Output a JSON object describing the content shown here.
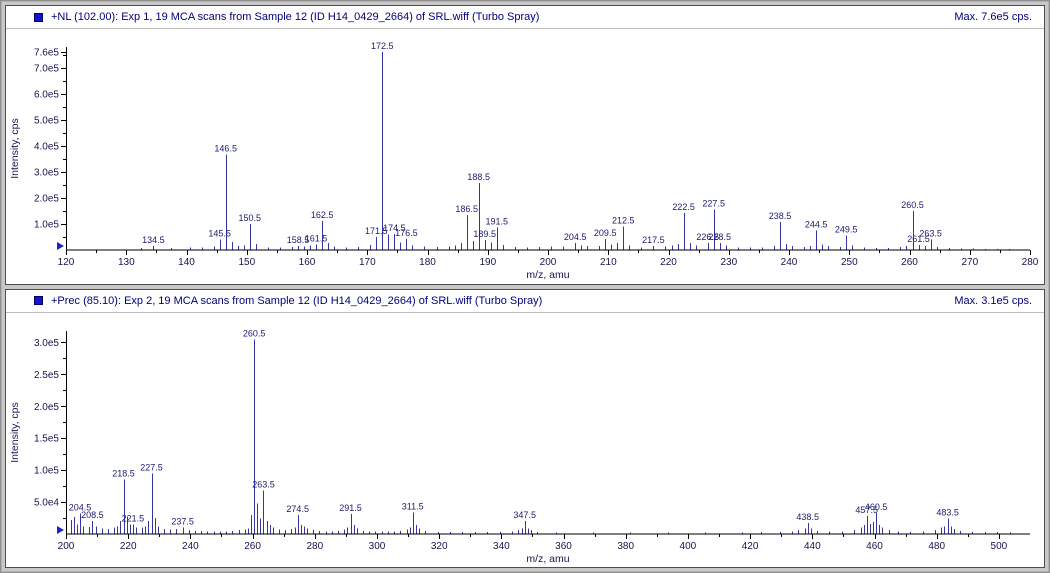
{
  "style": {
    "peak_color": "#3434a4",
    "peak_label_color": "#1b1b6e",
    "tick_label_color": "#15154d",
    "axis_color": "#000000",
    "marker_color": "#2020c8",
    "header_text_color": "#00007d"
  },
  "panels": [
    {
      "icon": "pane-select-square-icon",
      "title": "+NL (102.00): Exp 1, 19 MCA scans from Sample 12 (ID H14_0429_2664) of SRL.wiff (Turbo Spray)",
      "max_label": "Max. 7.6e5 cps."
    },
    {
      "icon": "pane-select-square-icon",
      "title": "+Prec (85.10): Exp 2, 19 MCA scans from Sample 12 (ID H14_0429_2664) of SRL.wiff (Turbo Spray)",
      "max_label": "Max. 3.1e5 cps."
    }
  ],
  "chart_data": [
    {
      "type": "bar",
      "title": "+NL (102.00): Exp 1, 19 MCA scans from Sample 12 (ID H14_0429_2664) of SRL.wiff (Turbo Spray)",
      "xlabel": "m/z, amu",
      "ylabel": "Intensity, cps",
      "xlim": [
        120,
        280
      ],
      "ylim": [
        0,
        780000
      ],
      "max_intensity": 760000,
      "grid": false,
      "x_ticks": [
        120,
        130,
        140,
        150,
        160,
        170,
        180,
        190,
        200,
        210,
        220,
        230,
        240,
        250,
        260,
        270,
        280
      ],
      "x_minor": [
        125,
        135,
        145,
        155,
        165,
        175,
        185,
        195,
        205,
        215,
        225,
        235,
        245,
        255,
        265,
        275
      ],
      "y_ticks": [
        {
          "v": 100000,
          "label": "1.0e5"
        },
        {
          "v": 200000,
          "label": "2.0e5"
        },
        {
          "v": 300000,
          "label": "3.0e5"
        },
        {
          "v": 400000,
          "label": "4.0e5"
        },
        {
          "v": 500000,
          "label": "5.0e5"
        },
        {
          "v": 600000,
          "label": "6.0e5"
        },
        {
          "v": 700000,
          "label": "7.0e5"
        },
        {
          "v": 760000,
          "label": "7.6e5"
        }
      ],
      "y_minor": [
        50000,
        150000,
        250000,
        350000,
        450000,
        550000,
        650000,
        750000
      ],
      "labeled_peaks": [
        {
          "mz": 134.5,
          "i": 15000,
          "label": "134.5"
        },
        {
          "mz": 145.5,
          "i": 40000,
          "label": "145.5"
        },
        {
          "mz": 146.5,
          "i": 367000,
          "label": "146.5"
        },
        {
          "mz": 150.5,
          "i": 100000,
          "label": "150.5"
        },
        {
          "mz": 158.5,
          "i": 15000,
          "label": "158.5"
        },
        {
          "mz": 161.5,
          "i": 22000,
          "label": "161.5"
        },
        {
          "mz": 162.5,
          "i": 112000,
          "label": "162.5"
        },
        {
          "mz": 171.5,
          "i": 50000,
          "label": "171.5"
        },
        {
          "mz": 172.5,
          "i": 760000,
          "label": "172.5"
        },
        {
          "mz": 174.5,
          "i": 62000,
          "label": "174.5"
        },
        {
          "mz": 176.5,
          "i": 42000,
          "label": "176.5"
        },
        {
          "mz": 186.5,
          "i": 135000,
          "label": "186.5"
        },
        {
          "mz": 188.5,
          "i": 258000,
          "label": "188.5"
        },
        {
          "mz": 189.5,
          "i": 38000,
          "label": "189.5"
        },
        {
          "mz": 191.5,
          "i": 86000,
          "label": "191.5"
        },
        {
          "mz": 204.5,
          "i": 26000,
          "label": "204.5"
        },
        {
          "mz": 209.5,
          "i": 42000,
          "label": "209.5"
        },
        {
          "mz": 212.5,
          "i": 90000,
          "label": "212.5"
        },
        {
          "mz": 217.5,
          "i": 16000,
          "label": "217.5"
        },
        {
          "mz": 222.5,
          "i": 142000,
          "label": "222.5"
        },
        {
          "mz": 226.5,
          "i": 27000,
          "label": "226.5"
        },
        {
          "mz": 227.5,
          "i": 156000,
          "label": "227.5"
        },
        {
          "mz": 228.5,
          "i": 27000,
          "label": "228.5"
        },
        {
          "mz": 238.5,
          "i": 108000,
          "label": "238.5"
        },
        {
          "mz": 244.5,
          "i": 74000,
          "label": "244.5"
        },
        {
          "mz": 249.5,
          "i": 55000,
          "label": "249.5"
        },
        {
          "mz": 260.5,
          "i": 150000,
          "label": "260.5"
        },
        {
          "mz": 261.5,
          "i": 20000,
          "label": "261.5"
        },
        {
          "mz": 263.5,
          "i": 40000,
          "label": "263.5"
        }
      ],
      "minor_peaks": [
        [
          132.5,
          8000
        ],
        [
          137.5,
          7000
        ],
        [
          140.5,
          9000
        ],
        [
          142.5,
          10000
        ],
        [
          144.5,
          14000
        ],
        [
          147.5,
          30000
        ],
        [
          148.5,
          16000
        ],
        [
          149.5,
          18000
        ],
        [
          151.5,
          24000
        ],
        [
          153.5,
          10000
        ],
        [
          155.5,
          9000
        ],
        [
          157.5,
          11000
        ],
        [
          159.5,
          13000
        ],
        [
          160.5,
          17000
        ],
        [
          163.5,
          26000
        ],
        [
          164.5,
          14000
        ],
        [
          166.5,
          10000
        ],
        [
          168.5,
          11000
        ],
        [
          170.5,
          20000
        ],
        [
          173.5,
          60000
        ],
        [
          175.5,
          28000
        ],
        [
          177.5,
          17000
        ],
        [
          179.5,
          13000
        ],
        [
          181.5,
          12000
        ],
        [
          183.5,
          13000
        ],
        [
          184.5,
          17000
        ],
        [
          185.5,
          26000
        ],
        [
          187.5,
          34000
        ],
        [
          190.5,
          28000
        ],
        [
          192.5,
          20000
        ],
        [
          194.5,
          11000
        ],
        [
          196.5,
          10000
        ],
        [
          198.5,
          11000
        ],
        [
          200.5,
          14000
        ],
        [
          202.5,
          13000
        ],
        [
          205.5,
          17000
        ],
        [
          206.5,
          15000
        ],
        [
          208.5,
          15000
        ],
        [
          210.5,
          21000
        ],
        [
          211.5,
          27000
        ],
        [
          213.5,
          17000
        ],
        [
          215.5,
          10000
        ],
        [
          219.5,
          13000
        ],
        [
          220.5,
          17000
        ],
        [
          221.5,
          24000
        ],
        [
          223.5,
          27000
        ],
        [
          224.5,
          17000
        ],
        [
          229.5,
          17000
        ],
        [
          231.5,
          10000
        ],
        [
          233.5,
          9000
        ],
        [
          235.5,
          10000
        ],
        [
          237.5,
          16000
        ],
        [
          239.5,
          24000
        ],
        [
          240.5,
          16000
        ],
        [
          242.5,
          11000
        ],
        [
          243.5,
          15000
        ],
        [
          245.5,
          22000
        ],
        [
          246.5,
          15000
        ],
        [
          248.5,
          11000
        ],
        [
          250.5,
          18000
        ],
        [
          252.5,
          9000
        ],
        [
          254.5,
          8000
        ],
        [
          256.5,
          8000
        ],
        [
          258.5,
          11000
        ],
        [
          259.5,
          15000
        ],
        [
          262.5,
          15000
        ],
        [
          264.5,
          11000
        ],
        [
          266.5,
          7000
        ],
        [
          268.5,
          6000
        ],
        [
          270.5,
          5000
        ],
        [
          272.5,
          4000
        ],
        [
          274.5,
          4000
        ],
        [
          276.5,
          4000
        ]
      ]
    },
    {
      "type": "bar",
      "title": "+Prec (85.10): Exp 2, 19 MCA scans from Sample 12 (ID H14_0429_2664) of SRL.wiff (Turbo Spray)",
      "xlabel": "m/z, amu",
      "ylabel": "Intensity, cps",
      "xlim": [
        200,
        510
      ],
      "ylim": [
        0,
        318000
      ],
      "max_intensity": 305000,
      "grid": false,
      "x_ticks": [
        200,
        220,
        240,
        260,
        280,
        300,
        320,
        340,
        360,
        380,
        400,
        420,
        440,
        460,
        480,
        500
      ],
      "x_minor": [
        210,
        230,
        250,
        270,
        290,
        310,
        330,
        350,
        370,
        390,
        410,
        430,
        450,
        470,
        490
      ],
      "y_ticks": [
        {
          "v": 50000,
          "label": "5.0e4"
        },
        {
          "v": 100000,
          "label": "1.0e5"
        },
        {
          "v": 150000,
          "label": "1.5e5"
        },
        {
          "v": 200000,
          "label": "2.0e5"
        },
        {
          "v": 250000,
          "label": "2.5e5"
        },
        {
          "v": 300000,
          "label": "3.0e5"
        }
      ],
      "y_minor": [
        25000,
        75000,
        125000,
        175000,
        225000,
        275000
      ],
      "labeled_peaks": [
        {
          "mz": 204.5,
          "i": 32000,
          "label": "204.5"
        },
        {
          "mz": 208.5,
          "i": 20000,
          "label": "208.5"
        },
        {
          "mz": 218.5,
          "i": 85000,
          "label": "218.5"
        },
        {
          "mz": 221.5,
          "i": 15000,
          "label": "221.5"
        },
        {
          "mz": 227.5,
          "i": 95000,
          "label": "227.5"
        },
        {
          "mz": 237.5,
          "i": 10000,
          "label": "237.5"
        },
        {
          "mz": 260.5,
          "i": 305000,
          "label": "260.5"
        },
        {
          "mz": 263.5,
          "i": 68000,
          "label": "263.5"
        },
        {
          "mz": 274.5,
          "i": 30000,
          "label": "274.5"
        },
        {
          "mz": 291.5,
          "i": 31000,
          "label": "291.5"
        },
        {
          "mz": 311.5,
          "i": 34000,
          "label": "311.5"
        },
        {
          "mz": 347.5,
          "i": 20000,
          "label": "347.5"
        },
        {
          "mz": 438.5,
          "i": 17000,
          "label": "438.5"
        },
        {
          "mz": 457.5,
          "i": 28000,
          "label": "457.5"
        },
        {
          "mz": 460.5,
          "i": 33000,
          "label": "460.5"
        },
        {
          "mz": 483.5,
          "i": 24000,
          "label": "483.5"
        }
      ],
      "minor_peaks": [
        [
          201.5,
          22000
        ],
        [
          202.5,
          27000
        ],
        [
          203.5,
          15000
        ],
        [
          205.5,
          12000
        ],
        [
          207.5,
          11000
        ],
        [
          209.5,
          12000
        ],
        [
          211.5,
          9000
        ],
        [
          213.5,
          8000
        ],
        [
          215.5,
          10000
        ],
        [
          216.5,
          12000
        ],
        [
          217.5,
          20000
        ],
        [
          219.5,
          27000
        ],
        [
          220.5,
          15000
        ],
        [
          222.5,
          10000
        ],
        [
          224.5,
          10000
        ],
        [
          225.5,
          12000
        ],
        [
          226.5,
          20000
        ],
        [
          228.5,
          25000
        ],
        [
          229.5,
          12000
        ],
        [
          231.5,
          8000
        ],
        [
          233.5,
          7000
        ],
        [
          235.5,
          8000
        ],
        [
          239.5,
          6000
        ],
        [
          241.5,
          5000
        ],
        [
          243.5,
          5000
        ],
        [
          245.5,
          4000
        ],
        [
          247.5,
          4000
        ],
        [
          249.5,
          4000
        ],
        [
          251.5,
          4000
        ],
        [
          253.5,
          5000
        ],
        [
          255.5,
          6000
        ],
        [
          257.5,
          7000
        ],
        [
          258.5,
          9000
        ],
        [
          259.5,
          30000
        ],
        [
          261.5,
          48000
        ],
        [
          262.5,
          24000
        ],
        [
          264.5,
          20000
        ],
        [
          265.5,
          14000
        ],
        [
          266.5,
          10000
        ],
        [
          268.5,
          7000
        ],
        [
          270.5,
          6000
        ],
        [
          272.5,
          8000
        ],
        [
          273.5,
          10000
        ],
        [
          275.5,
          14000
        ],
        [
          276.5,
          12000
        ],
        [
          277.5,
          9000
        ],
        [
          279.5,
          6000
        ],
        [
          281.5,
          5000
        ],
        [
          283.5,
          4000
        ],
        [
          285.5,
          4000
        ],
        [
          287.5,
          5000
        ],
        [
          289.5,
          7000
        ],
        [
          290.5,
          10000
        ],
        [
          292.5,
          14000
        ],
        [
          293.5,
          9000
        ],
        [
          295.5,
          5000
        ],
        [
          297.5,
          4000
        ],
        [
          299.5,
          4000
        ],
        [
          301.5,
          4000
        ],
        [
          303.5,
          4000
        ],
        [
          305.5,
          4000
        ],
        [
          307.5,
          5000
        ],
        [
          309.5,
          7000
        ],
        [
          310.5,
          10000
        ],
        [
          312.5,
          14000
        ],
        [
          313.5,
          9000
        ],
        [
          315.5,
          5000
        ],
        [
          319.5,
          3000
        ],
        [
          323.5,
          3000
        ],
        [
          327.5,
          3000
        ],
        [
          331.5,
          3000
        ],
        [
          335.5,
          3000
        ],
        [
          339.5,
          3000
        ],
        [
          343.5,
          4000
        ],
        [
          345.5,
          6000
        ],
        [
          346.5,
          9000
        ],
        [
          348.5,
          9000
        ],
        [
          349.5,
          6000
        ],
        [
          351.5,
          3000
        ],
        [
          357.5,
          2500
        ],
        [
          369.5,
          2500
        ],
        [
          381.5,
          2500
        ],
        [
          393.5,
          2500
        ],
        [
          405.5,
          2500
        ],
        [
          417.5,
          2500
        ],
        [
          423.5,
          3000
        ],
        [
          429.5,
          3000
        ],
        [
          433.5,
          4000
        ],
        [
          435.5,
          6000
        ],
        [
          437.5,
          9000
        ],
        [
          439.5,
          9000
        ],
        [
          441.5,
          5000
        ],
        [
          445.5,
          4000
        ],
        [
          449.5,
          4000
        ],
        [
          453.5,
          6000
        ],
        [
          455.5,
          10000
        ],
        [
          456.5,
          14000
        ],
        [
          458.5,
          16000
        ],
        [
          459.5,
          19000
        ],
        [
          461.5,
          14000
        ],
        [
          462.5,
          10000
        ],
        [
          464.5,
          6000
        ],
        [
          467.5,
          4000
        ],
        [
          471.5,
          3000
        ],
        [
          475.5,
          4000
        ],
        [
          479.5,
          6000
        ],
        [
          481.5,
          10000
        ],
        [
          482.5,
          12000
        ],
        [
          484.5,
          12000
        ],
        [
          485.5,
          8000
        ],
        [
          487.5,
          5000
        ],
        [
          491.5,
          3000
        ],
        [
          495.5,
          3000
        ],
        [
          499.5,
          3000
        ],
        [
          503.5,
          2500
        ]
      ]
    }
  ]
}
